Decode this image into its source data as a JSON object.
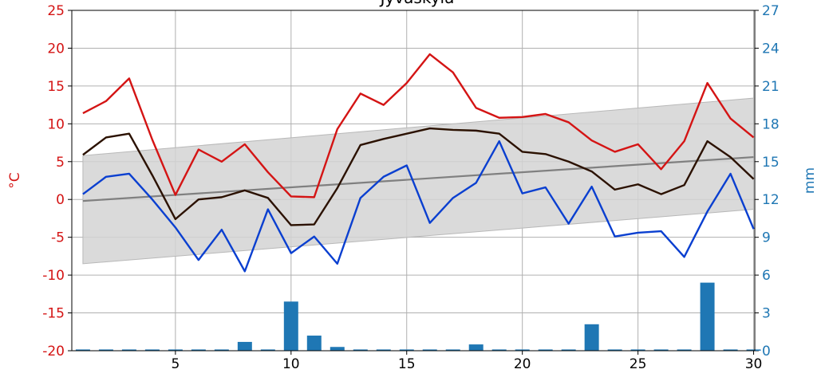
{
  "chart_data": {
    "type": "line",
    "title": "Jyväskylä",
    "ylabel": "°C",
    "y2label": "mm",
    "x": [
      1,
      2,
      3,
      4,
      5,
      6,
      7,
      8,
      9,
      10,
      11,
      12,
      13,
      14,
      15,
      16,
      17,
      18,
      19,
      20,
      21,
      22,
      23,
      24,
      25,
      26,
      27,
      28,
      29,
      30
    ],
    "xlim": [
      0.52,
      30.05
    ],
    "xticks": [
      5,
      10,
      15,
      20,
      25,
      30
    ],
    "ylim": [
      -20,
      25
    ],
    "yticks": [
      -20,
      -15,
      -10,
      -5,
      0,
      5,
      10,
      15,
      20,
      25
    ],
    "y2lim": [
      0,
      27
    ],
    "y2ticks": [
      0,
      3,
      6,
      9,
      12,
      15,
      18,
      21,
      24,
      27
    ],
    "grid": true,
    "ycolor": "#d41414",
    "y2color": "#1f77b4",
    "band": {
      "x": [
        1,
        30
      ],
      "lower": [
        -8.5,
        -1.3
      ],
      "upper": [
        5.8,
        13.4
      ],
      "color": "#d4d4d4"
    },
    "normal": {
      "x": [
        1,
        30
      ],
      "values": [
        -0.2,
        5.6
      ],
      "color": "#808080"
    },
    "series": [
      {
        "color": "#d41414",
        "values": [
          11.4,
          13.0,
          16.0,
          7.9,
          0.6,
          6.6,
          5.0,
          7.3,
          3.6,
          0.4,
          0.3,
          9.3,
          14.0,
          12.5,
          15.4,
          19.2,
          16.8,
          12.1,
          10.8,
          10.9,
          11.3,
          10.2,
          7.8,
          6.3,
          7.3,
          4.0,
          7.7,
          15.4,
          10.7,
          8.2
        ]
      },
      {
        "color": "#2b1100",
        "values": [
          5.9,
          8.2,
          8.7,
          3.2,
          -2.6,
          0.0,
          0.3,
          1.2,
          0.2,
          -3.4,
          -3.3,
          1.5,
          7.2,
          8.0,
          8.7,
          9.4,
          9.2,
          9.1,
          8.7,
          6.3,
          6.0,
          5.0,
          3.7,
          1.3,
          2.0,
          0.7,
          1.9,
          7.7,
          5.6,
          2.7
        ]
      },
      {
        "color": "#0a3fd0",
        "values": [
          0.7,
          3.0,
          3.4,
          0.0,
          -3.7,
          -8.0,
          -4.0,
          -9.5,
          -1.3,
          -7.1,
          -4.9,
          -8.5,
          0.2,
          3.0,
          4.5,
          -3.1,
          0.2,
          2.2,
          7.7,
          0.8,
          1.6,
          -3.2,
          1.7,
          -4.9,
          -4.4,
          -4.2,
          -7.6,
          -1.6,
          3.4,
          -3.9
        ]
      }
    ],
    "bars": {
      "axis": "y2",
      "color": "#1f77b4",
      "values": [
        0.1,
        0.1,
        0.1,
        0.1,
        0.1,
        0.1,
        0.1,
        0.7,
        0.1,
        3.9,
        1.2,
        0.3,
        0.1,
        0.1,
        0.1,
        0.1,
        0.1,
        0.5,
        0.1,
        0.1,
        0.1,
        0.1,
        2.1,
        0.1,
        0.1,
        0.1,
        0.1,
        5.4,
        0.1,
        0.1
      ]
    }
  }
}
